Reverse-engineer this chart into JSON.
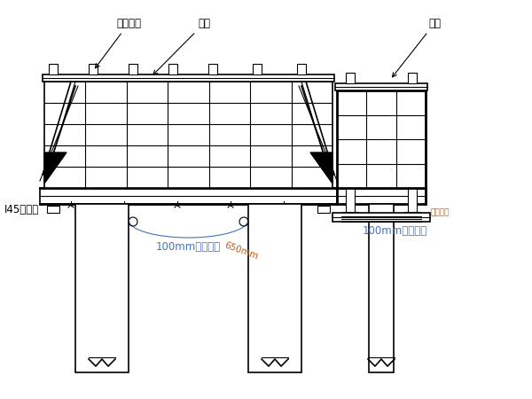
{
  "bg_color": "#ffffff",
  "line_color": "#000000",
  "text_color": "#000000",
  "blue_text": "#4472c4",
  "orange_text": "#c55a11",
  "labels": {
    "xing_gang": "型钢背枋",
    "gang_mo": "钢模",
    "la_gan": "拉杆",
    "i45": "I45承重梁",
    "yuan_gang_bian_zu_1": "100mm圆钢扁担",
    "yuan_gang_bian_zu_2": "100mm圆钢扁担",
    "ban_jing": "650mm",
    "dui_chuan_luo_shuan": "对穿螺栓"
  }
}
